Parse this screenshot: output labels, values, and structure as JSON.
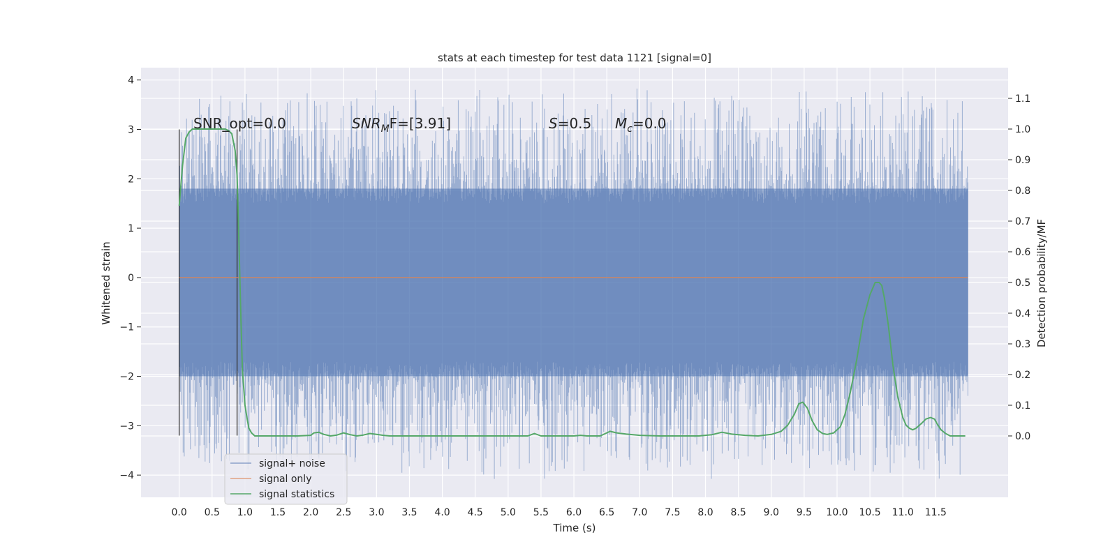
{
  "chart_data": {
    "type": "line",
    "title": "stats at each timestep for test data 1121 [signal=0]",
    "xlabel": "Time (s)",
    "ylabel_left": "Whitened strain",
    "ylabel_right": "Detection probability/MF",
    "xlim": [
      -0.58,
      12.6
    ],
    "ylim_left": [
      -4.45,
      4.25
    ],
    "ylim_right": [
      -0.2,
      1.2
    ],
    "xticks": [
      0.0,
      0.5,
      1.0,
      1.5,
      2.0,
      2.5,
      3.0,
      3.5,
      4.0,
      4.5,
      5.0,
      5.5,
      6.0,
      6.5,
      7.0,
      7.5,
      8.0,
      8.5,
      9.0,
      9.5,
      10.0,
      10.5,
      11.0,
      11.5
    ],
    "xtick_labels": [
      "0.0",
      "0.5",
      "1.0",
      "1.5",
      "2.0",
      "2.5",
      "3.0",
      "3.5",
      "4.0",
      "4.5",
      "5.0",
      "5.5",
      "6.0",
      "6.5",
      "7.0",
      "7.5",
      "8.0",
      "8.5",
      "9.0",
      "9.5",
      "10.0",
      "10.5",
      "11.0",
      "11.5"
    ],
    "yticks_left": [
      4,
      3,
      2,
      1,
      0,
      -1,
      -2,
      -3,
      -4
    ],
    "ytick_labels_left": [
      "4",
      "3",
      "2",
      "1",
      "0",
      "−1",
      "−2",
      "−3",
      "−4"
    ],
    "yticks_right": [
      1.1,
      1.0,
      0.9,
      0.8,
      0.7,
      0.6,
      0.5,
      0.4,
      0.3,
      0.2,
      0.1,
      0.0
    ],
    "ytick_labels_right": [
      "1.1",
      "1.0",
      "0.9",
      "0.8",
      "0.7",
      "0.6",
      "0.5",
      "0.4",
      "0.3",
      "0.2",
      "0.1",
      "0.0"
    ],
    "grid": true,
    "legend_position": "lower-left",
    "annotations": {
      "snr_opt": "SNR_opt=0.0",
      "snr_mf_base": "SNR",
      "snr_mf_sub": "M",
      "snr_mf_rest": "F=[3.91]",
      "s_var": "S",
      "s_rest": "=0.5",
      "mc_var": "M",
      "mc_sub": "c",
      "mc_rest": "=0.0"
    },
    "vertical_markers": [
      {
        "x": 0.0,
        "y_range": [
          -3.2,
          3.0
        ]
      },
      {
        "x": 0.88,
        "y_range": [
          -3.2,
          3.0
        ]
      }
    ],
    "noise_band": {
      "x_range": [
        0.0,
        11.99
      ],
      "typical_max": 1.8,
      "typical_min": -2.0,
      "peak_max": 3.9,
      "peak_min": -4.1
    },
    "series": [
      {
        "name": "signal+ noise",
        "color": "#4c72b0",
        "axis": "left",
        "style": "dense-noise"
      },
      {
        "name": "signal only",
        "color": "#dd8452",
        "axis": "left",
        "x": [
          0.0,
          11.99
        ],
        "y": [
          0.0,
          0.0
        ]
      },
      {
        "name": "signal statistics",
        "color": "#55a868",
        "axis": "right",
        "x": [
          0.0,
          0.05,
          0.1,
          0.15,
          0.2,
          0.3,
          0.4,
          0.5,
          0.6,
          0.7,
          0.75,
          0.8,
          0.85,
          0.88,
          0.9,
          0.93,
          0.96,
          1.0,
          1.03,
          1.06,
          1.1,
          1.15,
          1.2,
          1.3,
          1.5,
          1.8,
          2.0,
          2.05,
          2.12,
          2.2,
          2.3,
          2.4,
          2.5,
          2.6,
          2.7,
          2.8,
          2.9,
          3.0,
          3.1,
          3.2,
          3.4,
          3.6,
          3.8,
          4.0,
          4.5,
          5.0,
          5.3,
          5.4,
          5.5,
          5.6,
          5.8,
          6.0,
          6.1,
          6.2,
          6.4,
          6.55,
          6.65,
          6.8,
          7.0,
          7.3,
          7.6,
          7.9,
          8.1,
          8.25,
          8.4,
          8.6,
          8.8,
          9.0,
          9.15,
          9.25,
          9.35,
          9.42,
          9.48,
          9.55,
          9.62,
          9.7,
          9.78,
          9.85,
          9.95,
          10.05,
          10.12,
          10.2,
          10.3,
          10.4,
          10.5,
          10.58,
          10.64,
          10.68,
          10.72,
          10.78,
          10.85,
          10.92,
          11.0,
          11.05,
          11.1,
          11.15,
          11.2,
          11.28,
          11.35,
          11.42,
          11.48,
          11.52,
          11.58,
          11.65,
          11.72,
          11.8,
          11.9,
          11.95
        ],
        "y": [
          0.75,
          0.88,
          0.97,
          0.99,
          1.0,
          1.0,
          1.0,
          1.0,
          1.0,
          1.0,
          0.995,
          0.985,
          0.93,
          0.85,
          0.7,
          0.45,
          0.22,
          0.1,
          0.06,
          0.025,
          0.01,
          0.0,
          0.0,
          0.0,
          0.0,
          0.0,
          0.002,
          0.01,
          0.012,
          0.005,
          0.0,
          0.003,
          0.01,
          0.004,
          0.0,
          0.003,
          0.008,
          0.005,
          0.002,
          0.0,
          0.0,
          0.0,
          0.0,
          0.0,
          0.0,
          0.0,
          0.0,
          0.008,
          0.0,
          0.0,
          0.0,
          0.0,
          0.002,
          0.0,
          0.0,
          0.015,
          0.01,
          0.006,
          0.002,
          0.0,
          0.0,
          0.0,
          0.004,
          0.012,
          0.006,
          0.002,
          0.0,
          0.005,
          0.015,
          0.035,
          0.07,
          0.105,
          0.11,
          0.09,
          0.05,
          0.02,
          0.008,
          0.005,
          0.01,
          0.03,
          0.07,
          0.14,
          0.25,
          0.38,
          0.46,
          0.5,
          0.5,
          0.49,
          0.45,
          0.36,
          0.23,
          0.13,
          0.06,
          0.035,
          0.025,
          0.02,
          0.025,
          0.04,
          0.055,
          0.06,
          0.055,
          0.04,
          0.02,
          0.008,
          0.0,
          0.0,
          0.0,
          0.0
        ]
      }
    ]
  }
}
